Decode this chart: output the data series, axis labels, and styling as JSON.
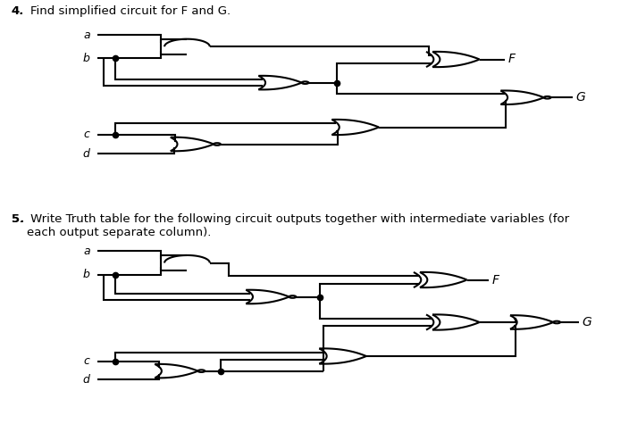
{
  "bg_color": "#ffffff",
  "lc": "#000000",
  "title4": "4.  Find simplified circuit for F and G.",
  "title5_line1": "5.  Write Truth table for the following circuit outputs together with intermediate variables (for",
  "title5_line2": "    each output separate column).",
  "lw": 1.5,
  "glw": 1.5,
  "bubble_r": 0.055,
  "dot_size": 4.5
}
